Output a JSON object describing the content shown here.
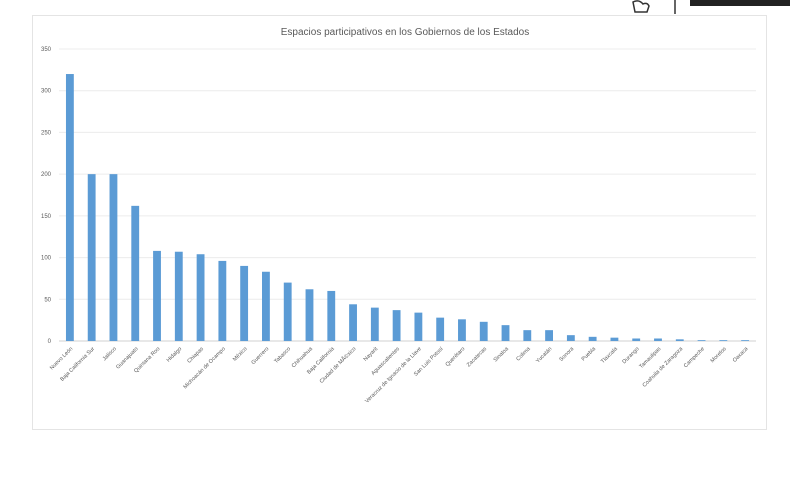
{
  "chart_data": {
    "type": "bar",
    "title": "Espacios participativos en los Gobiernos de los Estados",
    "xlabel": "",
    "ylabel": "",
    "ylim": [
      0,
      350
    ],
    "yticks": [
      0,
      50,
      100,
      150,
      200,
      250,
      300,
      350
    ],
    "grid": true,
    "bar_color": "#5b9bd5",
    "categories": [
      "Nuevo León",
      "Baja California Sur",
      "Jalisco",
      "Guanajuato",
      "Quintana Roo",
      "Hidalgo",
      "Chiapas",
      "Michoacán de Ocampo",
      "México",
      "Guerrero",
      "Tabasco",
      "Chihuahua",
      "Baja California",
      "Ciudad de MÃ©xico",
      "Nayarit",
      "Aguascalientes",
      "Veracruz de Ignacio de la Llave",
      "San Luis Potosí",
      "Querétaro",
      "Zacatecas",
      "Sinaloa",
      "Colima",
      "Yucatán",
      "Sonora",
      "Puebla",
      "Tlaxcala",
      "Durango",
      "Tamaulipas",
      "Coahuila de Zaragoza",
      "Campeche",
      "Morelos",
      "Oaxaca"
    ],
    "values": [
      320,
      200,
      200,
      162,
      108,
      107,
      104,
      96,
      90,
      83,
      70,
      62,
      60,
      44,
      40,
      37,
      34,
      28,
      26,
      23,
      19,
      13,
      13,
      7,
      5,
      4,
      3,
      3,
      2,
      1,
      1,
      1
    ]
  },
  "logo": {
    "icon": "government-emblem-icon"
  }
}
